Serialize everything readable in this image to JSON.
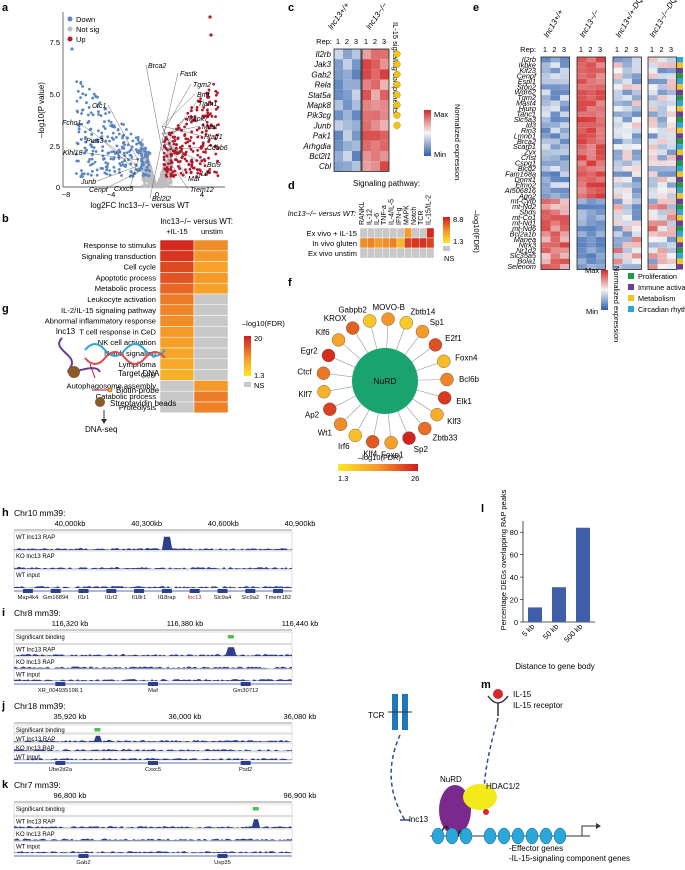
{
  "panels": {
    "a": {
      "label": "a",
      "legend": [
        {
          "name": "Down",
          "color": "#5b86c4"
        },
        {
          "name": "Not sig",
          "color": "#bdbdbd"
        },
        {
          "name": "Up",
          "color": "#b5182b"
        }
      ],
      "ylabel": "–log10(P value)",
      "xlabel": "log2FC lnc13−/− versus WT",
      "yticks": [
        "0",
        "2.5",
        "5.0",
        "7.5"
      ],
      "xticks": [
        "−8",
        "−4",
        "0",
        "4"
      ],
      "genes_up": [
        "Brca2",
        "Fastk",
        "Tgm2",
        "Bmf",
        "Tiam1",
        "Mapk7",
        "Mast",
        "Htatf1",
        "Cdbb6",
        "Bcl9",
        "Lif",
        "Maf",
        "Trem12",
        "Bcl2l2"
      ],
      "genes_down": [
        "Ctc1",
        "Fcho1",
        "Pias3",
        "Klhl18",
        "Junb",
        "Cenpf",
        "Cxxc5"
      ]
    },
    "b": {
      "label": "b",
      "title": "lnc13−/− versus WT:",
      "col_labels": [
        "+IL-15",
        "unstim"
      ],
      "rows": [
        "Response to stimulus",
        "Signaling transduction",
        "Cell cycle",
        "Apoptotic process",
        "Metabolic process",
        "Leukocyte activation",
        "IL-2/IL-15 signaling pathway",
        "Abnormal inflammatory response",
        "T cell response in CeD",
        "NK cell activation",
        "Notch signaling",
        "Lymphoma",
        "CeD",
        "Autophagosome assembly",
        "Catabolic process",
        "Proteolysis"
      ],
      "scale_label": "–log10(FDR)",
      "scale_max": "20",
      "scale_min": "1.3",
      "ns": "NS"
    },
    "c": {
      "label": "c",
      "groups": [
        "lnc13+/+",
        "lnc13−/−"
      ],
      "rep_label": "Rep:",
      "reps": [
        "1",
        "2",
        "3"
      ],
      "side_label": "IL-15 signaling components",
      "genes": [
        "Il2rb",
        "Jak3",
        "Gab2",
        "Rela",
        "Stat5a",
        "Mapk8",
        "Pik3cg",
        "Junb",
        "Pak1",
        "Arhgdia",
        "Bcl2l1",
        "Cbl"
      ],
      "scale_max": "Max",
      "scale_min": "Min",
      "scale_label": "Normalized expression"
    },
    "d": {
      "label": "d",
      "title": "Signaling pathway:",
      "row_header": "lnc13−/− versus WT:",
      "cols": [
        "RANKL",
        "IL-12",
        "IL-6",
        "TNF-a",
        "IL-4/IL-5",
        "IFN-g",
        "MAPK",
        "Notch",
        "TCR",
        "IL-15/IL-2"
      ],
      "rows": [
        "Ex vivo + IL-15",
        "In vivo gluten",
        "Ex vivo unstim"
      ],
      "scale_max": "8.8",
      "scale_min": "1.3",
      "scale_label": "–log10(FDR)",
      "ns": "NS"
    },
    "e": {
      "label": "e",
      "groups": [
        "lnc13+/+",
        "lnc13−/−",
        "lnc13+/+-DQ8",
        "lnc13−/−-DQ8"
      ],
      "rep_label": "Rep:",
      "reps": [
        "1",
        "2",
        "3"
      ],
      "genes": [
        "Il2rb",
        "Ikbke",
        "Kif23",
        "Cenpf",
        "Espl1",
        "Ston2",
        "Wdr62",
        "Tgm2",
        "Mast4",
        "Hjurp",
        "Tanc1",
        "Slc5a3",
        "Id3",
        "Rin3",
        "Lmnb1",
        "Brca2",
        "Scarb1",
        "Zyx",
        "Crist",
        "Cspg1",
        "Bicd2",
        "Fam168a",
        "Dnmt1",
        "Elmo2",
        "AI506816",
        "Ago2",
        "mt-Cytb",
        "mt-Nd2",
        "Sbds",
        "mt-Co1",
        "mt-Nd1",
        "mt-Nd6",
        "Bcl2a1b",
        "Manea",
        "Ntrk3",
        "Nr1d2",
        "Slc35a5",
        "Bola1",
        "Selenom"
      ],
      "scale_max": "Max",
      "scale_min": "Min",
      "scale_label": "Normalized expression",
      "categories": [
        {
          "name": "Proliferation",
          "color": "#1e9a4a"
        },
        {
          "name": "Immune activation",
          "color": "#6a3d9a"
        },
        {
          "name": "Metabolism",
          "color": "#f2c31b"
        },
        {
          "name": "Circadian rhythm",
          "color": "#2aa6d8"
        }
      ]
    },
    "f": {
      "label": "f",
      "center": "NuRD",
      "nodes": [
        "Zbtb14",
        "Sp1",
        "E2f1",
        "Foxn4",
        "Bcl6b",
        "Elk1",
        "Klf3",
        "Zbtb33",
        "Sp2",
        "Foxn1",
        "Klf4",
        "Irf6",
        "Wt1",
        "Ap2",
        "Klf7",
        "Ctcf",
        "Egr2",
        "Klf6",
        "KROX",
        "Gabpb2",
        "MOVO-B"
      ],
      "scale_min": "1.3",
      "scale_max": "26",
      "scale_label": "–log10(FDR)"
    },
    "g": {
      "label": "g",
      "lnc": "lnc13",
      "target": "Target DNA",
      "probe": "Biotin-probe",
      "beads": "Streptavidin beads",
      "result": "DNA-seq"
    },
    "h": {
      "label": "h",
      "title": "Chr10 mm39:",
      "ticks": [
        "40,000kb",
        "40,300kb",
        "40,600kb",
        "40,900kb"
      ],
      "tracks": [
        "WT lnc13 RAP",
        "KO lnc13 RAP",
        "WT input"
      ],
      "genes": [
        "Map4k4",
        "Gm16894",
        "Il1r1",
        "Il1rl2",
        "Il18r1",
        "Il18rap",
        "lnc13",
        "Slc9a4",
        "Slc9a2",
        "Tmem182"
      ]
    },
    "i": {
      "label": "i",
      "title": "Chr8 mm39:",
      "ticks": [
        "116,320 kb",
        "116,380 kb",
        "116,440 kb"
      ],
      "tracks": [
        "Significant binding",
        "WT lnc13 RAP",
        "KO lnc13 RAP",
        "WT input"
      ],
      "genes": [
        "XR_004935198.1",
        "Maf",
        "Gm30712"
      ]
    },
    "j": {
      "label": "j",
      "title": "Chr18 mm39:",
      "ticks": [
        "35,920 kb",
        "36,000 kb",
        "36,080 kb"
      ],
      "tracks": [
        "Significant binding",
        "WT lnc13 RAP",
        "KO lnc13 RAP",
        "WT input"
      ],
      "genes": [
        "Ube2d2a",
        "Cxxc5",
        "Psd2"
      ]
    },
    "k": {
      "label": "k",
      "title": "Chr7 mm39:",
      "ticks": [
        "96,800 kb",
        "96,900 kb"
      ],
      "tracks": [
        "Significant binding",
        "WT lnc13 RAP",
        "KO lnc13 RAP",
        "WT input"
      ],
      "genes": [
        "Gab2",
        "Usp35"
      ]
    },
    "l": {
      "label": "l",
      "ylabel": "Percentage DEGs overlapping RAP peaks",
      "xlabel": "Distance to gene body",
      "yticks": [
        "0",
        "20",
        "40",
        "60",
        "80"
      ]
    },
    "m": {
      "label": "m",
      "tcr": "TCR",
      "il15": "IL-15",
      "il15r": "IL-15 receptor",
      "nurd": "NuRD",
      "hdac": "HDAC1/2",
      "lnc": "lnc13",
      "out1": "-Effector genes",
      "out2": "-IL-15-signaling component genes"
    }
  },
  "chart_data": {
    "type": "bar",
    "categories": [
      "5 kb",
      "50 kb",
      "500 kb"
    ],
    "values": [
      13,
      31,
      84
    ],
    "xlabel": "Distance to gene body",
    "ylabel": "Percentage DEGs overlapping RAP peaks",
    "ylim": [
      0,
      90
    ],
    "grid": false,
    "bar_color": "#3f5fa8"
  }
}
